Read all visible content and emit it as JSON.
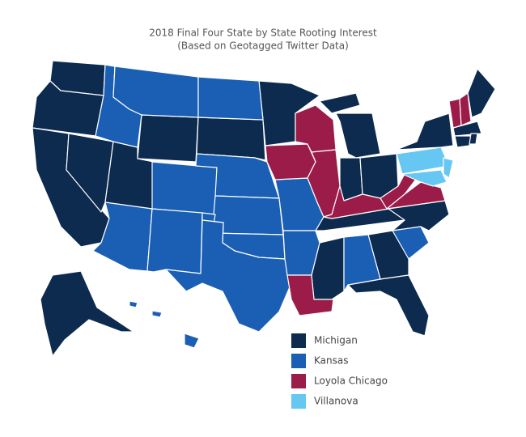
{
  "title": "2018 Final Four State by State Rooting Interest",
  "subtitle": "(Based on Geotagged Twitter Data)",
  "legend": [
    {
      "label": "Michigan",
      "color": "#0d2a4f",
      "states": [
        "WA",
        "OR",
        "CA",
        "NV",
        "UT",
        "WY",
        "SD",
        "MN",
        "MI",
        "MI2",
        "IN",
        "OH",
        "NY",
        "ME",
        "MA",
        "CT",
        "RI",
        "TN",
        "NC",
        "GA",
        "FL",
        "MS",
        "AK"
      ]
    },
    {
      "label": "Kansas",
      "color": "#1a5fb4",
      "states": [
        "ID",
        "MT",
        "AZ",
        "CO",
        "NM",
        "ND",
        "NE",
        "KS",
        "OK",
        "TX",
        "MO",
        "AR",
        "AL",
        "SC",
        "HI1",
        "HI2",
        "HI3"
      ]
    },
    {
      "label": "Loyola Chicago",
      "color": "#9b1c48",
      "states": [
        "IA",
        "WI",
        "IL",
        "KY",
        "WV",
        "VA",
        "LA",
        "VT",
        "NH"
      ]
    },
    {
      "label": "Villanova",
      "color": "#66c7f2",
      "states": [
        "PA",
        "NJ",
        "MD"
      ]
    }
  ]
}
